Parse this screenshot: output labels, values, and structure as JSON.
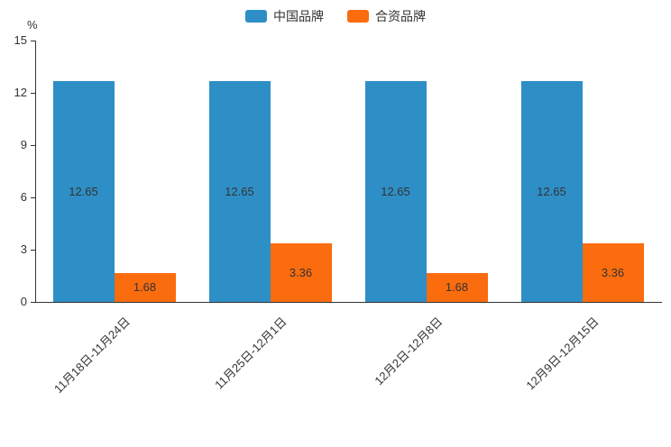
{
  "chart_data": {
    "type": "bar",
    "unit": "%",
    "categories": [
      "11月18日-11月24日",
      "11月25日-12月1日",
      "12月2日-12月8日",
      "12月9日-12月15日"
    ],
    "series": [
      {
        "name": "中国品牌",
        "color": "#2E8FC6",
        "values": [
          12.65,
          12.65,
          12.65,
          12.65
        ]
      },
      {
        "name": "合资品牌",
        "color": "#FB6C0F",
        "values": [
          1.68,
          3.36,
          1.68,
          3.36
        ]
      }
    ],
    "ylim": [
      0,
      15
    ],
    "yticks": [
      0,
      3,
      6,
      9,
      12,
      15
    ],
    "legend_position": "top",
    "grid": false,
    "value_label_color": "#333333",
    "axis_color": "#333333"
  }
}
